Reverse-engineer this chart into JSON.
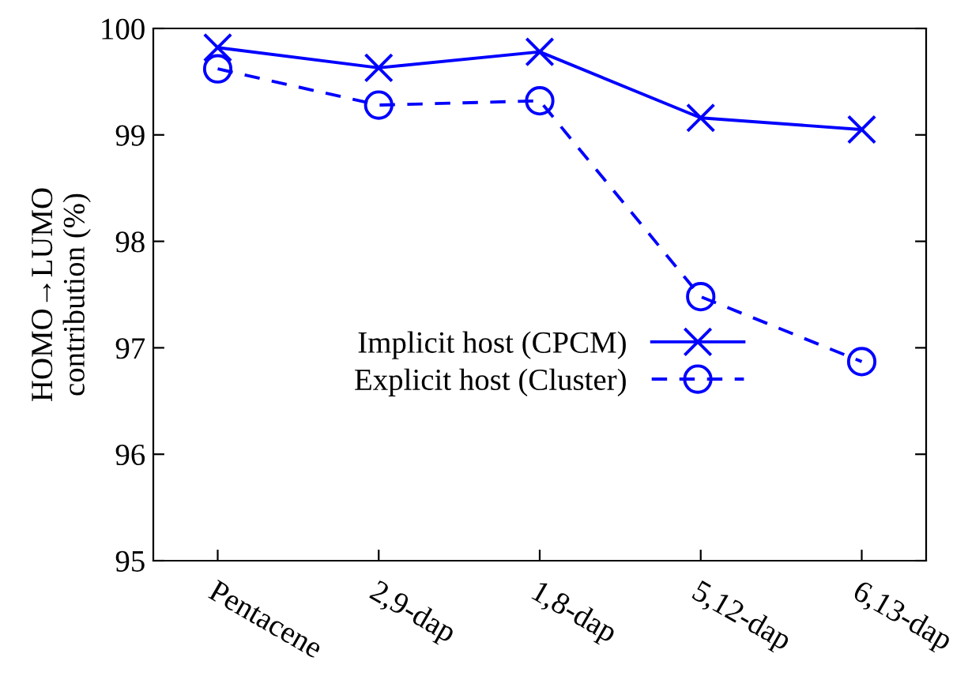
{
  "chart_data": {
    "type": "line",
    "ylabel": "HOMO→LUMO\ncontribution (%)",
    "categories": [
      "Pentacene",
      "2,9-dap",
      "1,8-dap",
      "5,12-dap",
      "6,13-dap"
    ],
    "series": [
      {
        "name": "Implicit host (CPCM)",
        "color": "#0000ff",
        "values": [
          99.82,
          99.63,
          99.78,
          99.16,
          99.05
        ],
        "marker": "cross",
        "line_style": "solid"
      },
      {
        "name": "Explicit host (Cluster)",
        "color": "#0000ff",
        "values": [
          99.62,
          99.28,
          99.32,
          97.48,
          96.87
        ],
        "marker": "circle",
        "line_style": "dashed"
      }
    ],
    "ylim": [
      95,
      100
    ],
    "yticks": [
      95,
      96,
      97,
      98,
      99,
      100
    ],
    "grid": false,
    "legend": "center right"
  }
}
